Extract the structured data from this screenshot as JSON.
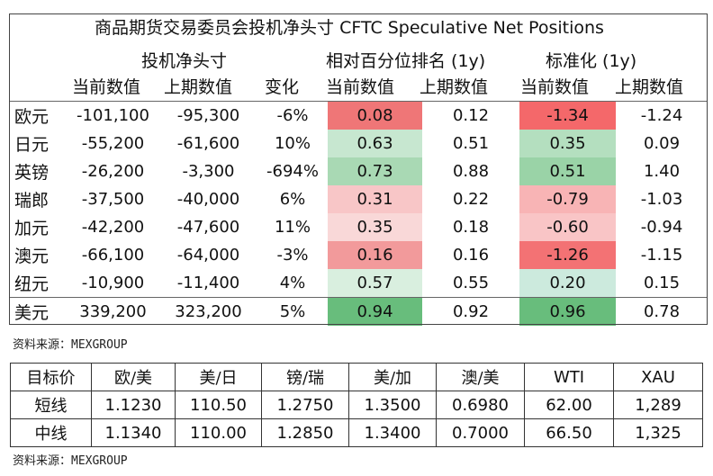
{
  "positions_table": {
    "title": "商品期货交易委员会投机净头寸 CFTC Speculative Net Positions",
    "group_headers": {
      "net": "投机净头寸",
      "percentile": "相对百分位排名 (1y)",
      "standardized": "标准化 (1y)"
    },
    "column_headers": {
      "net_current": "当前数值",
      "net_previous": "上期数值",
      "net_change": "变化",
      "pct_current": "当前数值",
      "pct_previous": "上期数值",
      "std_current": "当前数值",
      "std_previous": "上期数值"
    },
    "rows": [
      {
        "currency": "欧元",
        "net_current": "-101,100",
        "net_previous": "-95,300",
        "change": "-6%",
        "pct_current": "0.08",
        "pct_previous": "0.12",
        "std_current": "-1.34",
        "std_previous": "-1.24",
        "pct_color": "#ef7677",
        "std_color": "#f4686a"
      },
      {
        "currency": "日元",
        "net_current": "-55,200",
        "net_previous": "-61,600",
        "change": "10%",
        "pct_current": "0.63",
        "pct_previous": "0.51",
        "std_current": "0.35",
        "std_previous": "0.09",
        "pct_color": "#c7e7d0",
        "std_color": "#b4dfbf"
      },
      {
        "currency": "英镑",
        "net_current": "-26,200",
        "net_previous": "-3,300",
        "change": "-694%",
        "pct_current": "0.73",
        "pct_previous": "0.88",
        "std_current": "0.51",
        "std_previous": "1.40",
        "pct_color": "#a9d9b4",
        "std_color": "#9ad3a7"
      },
      {
        "currency": "瑞郎",
        "net_current": "-37,500",
        "net_previous": "-40,000",
        "change": "6%",
        "pct_current": "0.31",
        "pct_previous": "0.22",
        "std_current": "-0.79",
        "std_previous": "-1.03",
        "pct_color": "#f8c6c7",
        "std_color": "#f8b4b5"
      },
      {
        "currency": "加元",
        "net_current": "-42,200",
        "net_previous": "-47,600",
        "change": "11%",
        "pct_current": "0.35",
        "pct_previous": "0.18",
        "std_current": "-0.60",
        "std_previous": "-0.94",
        "pct_color": "#f9d8d8",
        "std_color": "#f9c5c6"
      },
      {
        "currency": "澳元",
        "net_current": "-66,100",
        "net_previous": "-64,000",
        "change": "-3%",
        "pct_current": "0.16",
        "pct_previous": "0.16",
        "std_current": "-1.26",
        "std_previous": "-1.15",
        "pct_color": "#f29a9b",
        "std_color": "#f37274"
      },
      {
        "currency": "纽元",
        "net_current": "-10,900",
        "net_previous": "-11,400",
        "change": "4%",
        "pct_current": "0.57",
        "pct_previous": "0.55",
        "std_current": "0.20",
        "std_previous": "0.15",
        "pct_color": "#d9efdf",
        "std_color": "#cceadd"
      },
      {
        "currency": "美元",
        "net_current": "339,200",
        "net_previous": "323,200",
        "change": "5%",
        "pct_current": "0.94",
        "pct_previous": "0.92",
        "std_current": "0.96",
        "std_previous": "0.78",
        "pct_color": "#68bd7c",
        "std_color": "#68bd7c"
      }
    ]
  },
  "source_label_1": "资料来源：MEXGROUP",
  "targets_table": {
    "header_label": "目标价",
    "pairs": [
      "欧/美",
      "美/日",
      "镑/瑞",
      "美/加",
      "澳/美",
      "WTI",
      "XAU"
    ],
    "rows": [
      {
        "label": "短线",
        "values": [
          "1.1230",
          "110.50",
          "1.2750",
          "1.3500",
          "0.6980",
          "62.00",
          "1,289"
        ]
      },
      {
        "label": "中线",
        "values": [
          "1.1340",
          "110.00",
          "1.2850",
          "1.3400",
          "0.7000",
          "66.50",
          "1,325"
        ]
      }
    ]
  },
  "source_label_2": "资料来源：MEXGROUP"
}
